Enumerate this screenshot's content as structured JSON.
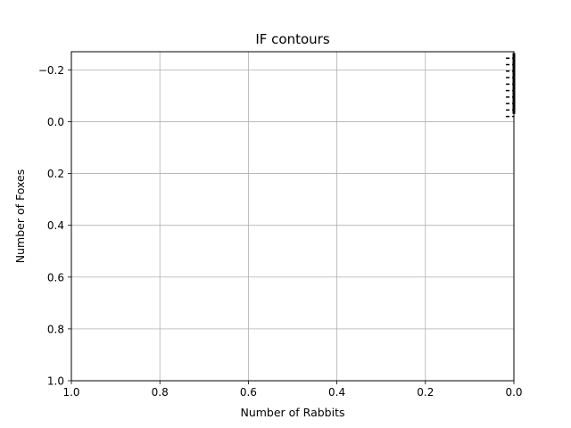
{
  "chart_data": {
    "type": "line",
    "title": "IF contours",
    "xlabel": "Number of Rabbits",
    "ylabel": "Number of Foxes",
    "xlim": [
      1.0,
      0.0
    ],
    "ylim": [
      1.0,
      -0.27
    ],
    "x_ticks": [
      1.0,
      0.8,
      0.6,
      0.4,
      0.2,
      0.0
    ],
    "x_tick_labels": [
      "1.0",
      "0.8",
      "0.6",
      "0.4",
      "0.2",
      "0.0"
    ],
    "y_ticks": [
      -0.2,
      0.0,
      0.2,
      0.4,
      0.6,
      0.8,
      1.0
    ],
    "y_tick_labels": [
      "−0.2",
      "0.0",
      "0.2",
      "0.4",
      "0.6",
      "0.8",
      "1.0"
    ],
    "grid": true,
    "series": [
      {
        "style": "solid",
        "color": "#000000",
        "x": [
          0.0,
          0.0
        ],
        "y": [
          -0.265,
          -0.03
        ]
      },
      {
        "style": "dashed",
        "color": "#000000",
        "segments": [
          {
            "x": [
              0.018,
              0.0
            ],
            "y": [
              -0.245,
              -0.245
            ]
          },
          {
            "x": [
              0.018,
              0.0
            ],
            "y": [
              -0.22,
              -0.22
            ]
          },
          {
            "x": [
              0.018,
              0.0
            ],
            "y": [
              -0.195,
              -0.195
            ]
          },
          {
            "x": [
              0.018,
              0.0
            ],
            "y": [
              -0.17,
              -0.17
            ]
          },
          {
            "x": [
              0.018,
              0.0
            ],
            "y": [
              -0.145,
              -0.145
            ]
          },
          {
            "x": [
              0.018,
              0.0
            ],
            "y": [
              -0.12,
              -0.12
            ]
          },
          {
            "x": [
              0.018,
              0.0
            ],
            "y": [
              -0.095,
              -0.095
            ]
          },
          {
            "x": [
              0.018,
              0.0
            ],
            "y": [
              -0.07,
              -0.07
            ]
          },
          {
            "x": [
              0.018,
              0.0
            ],
            "y": [
              -0.045,
              -0.045
            ]
          },
          {
            "x": [
              0.018,
              0.0
            ],
            "y": [
              -0.02,
              -0.02
            ]
          }
        ]
      }
    ]
  }
}
